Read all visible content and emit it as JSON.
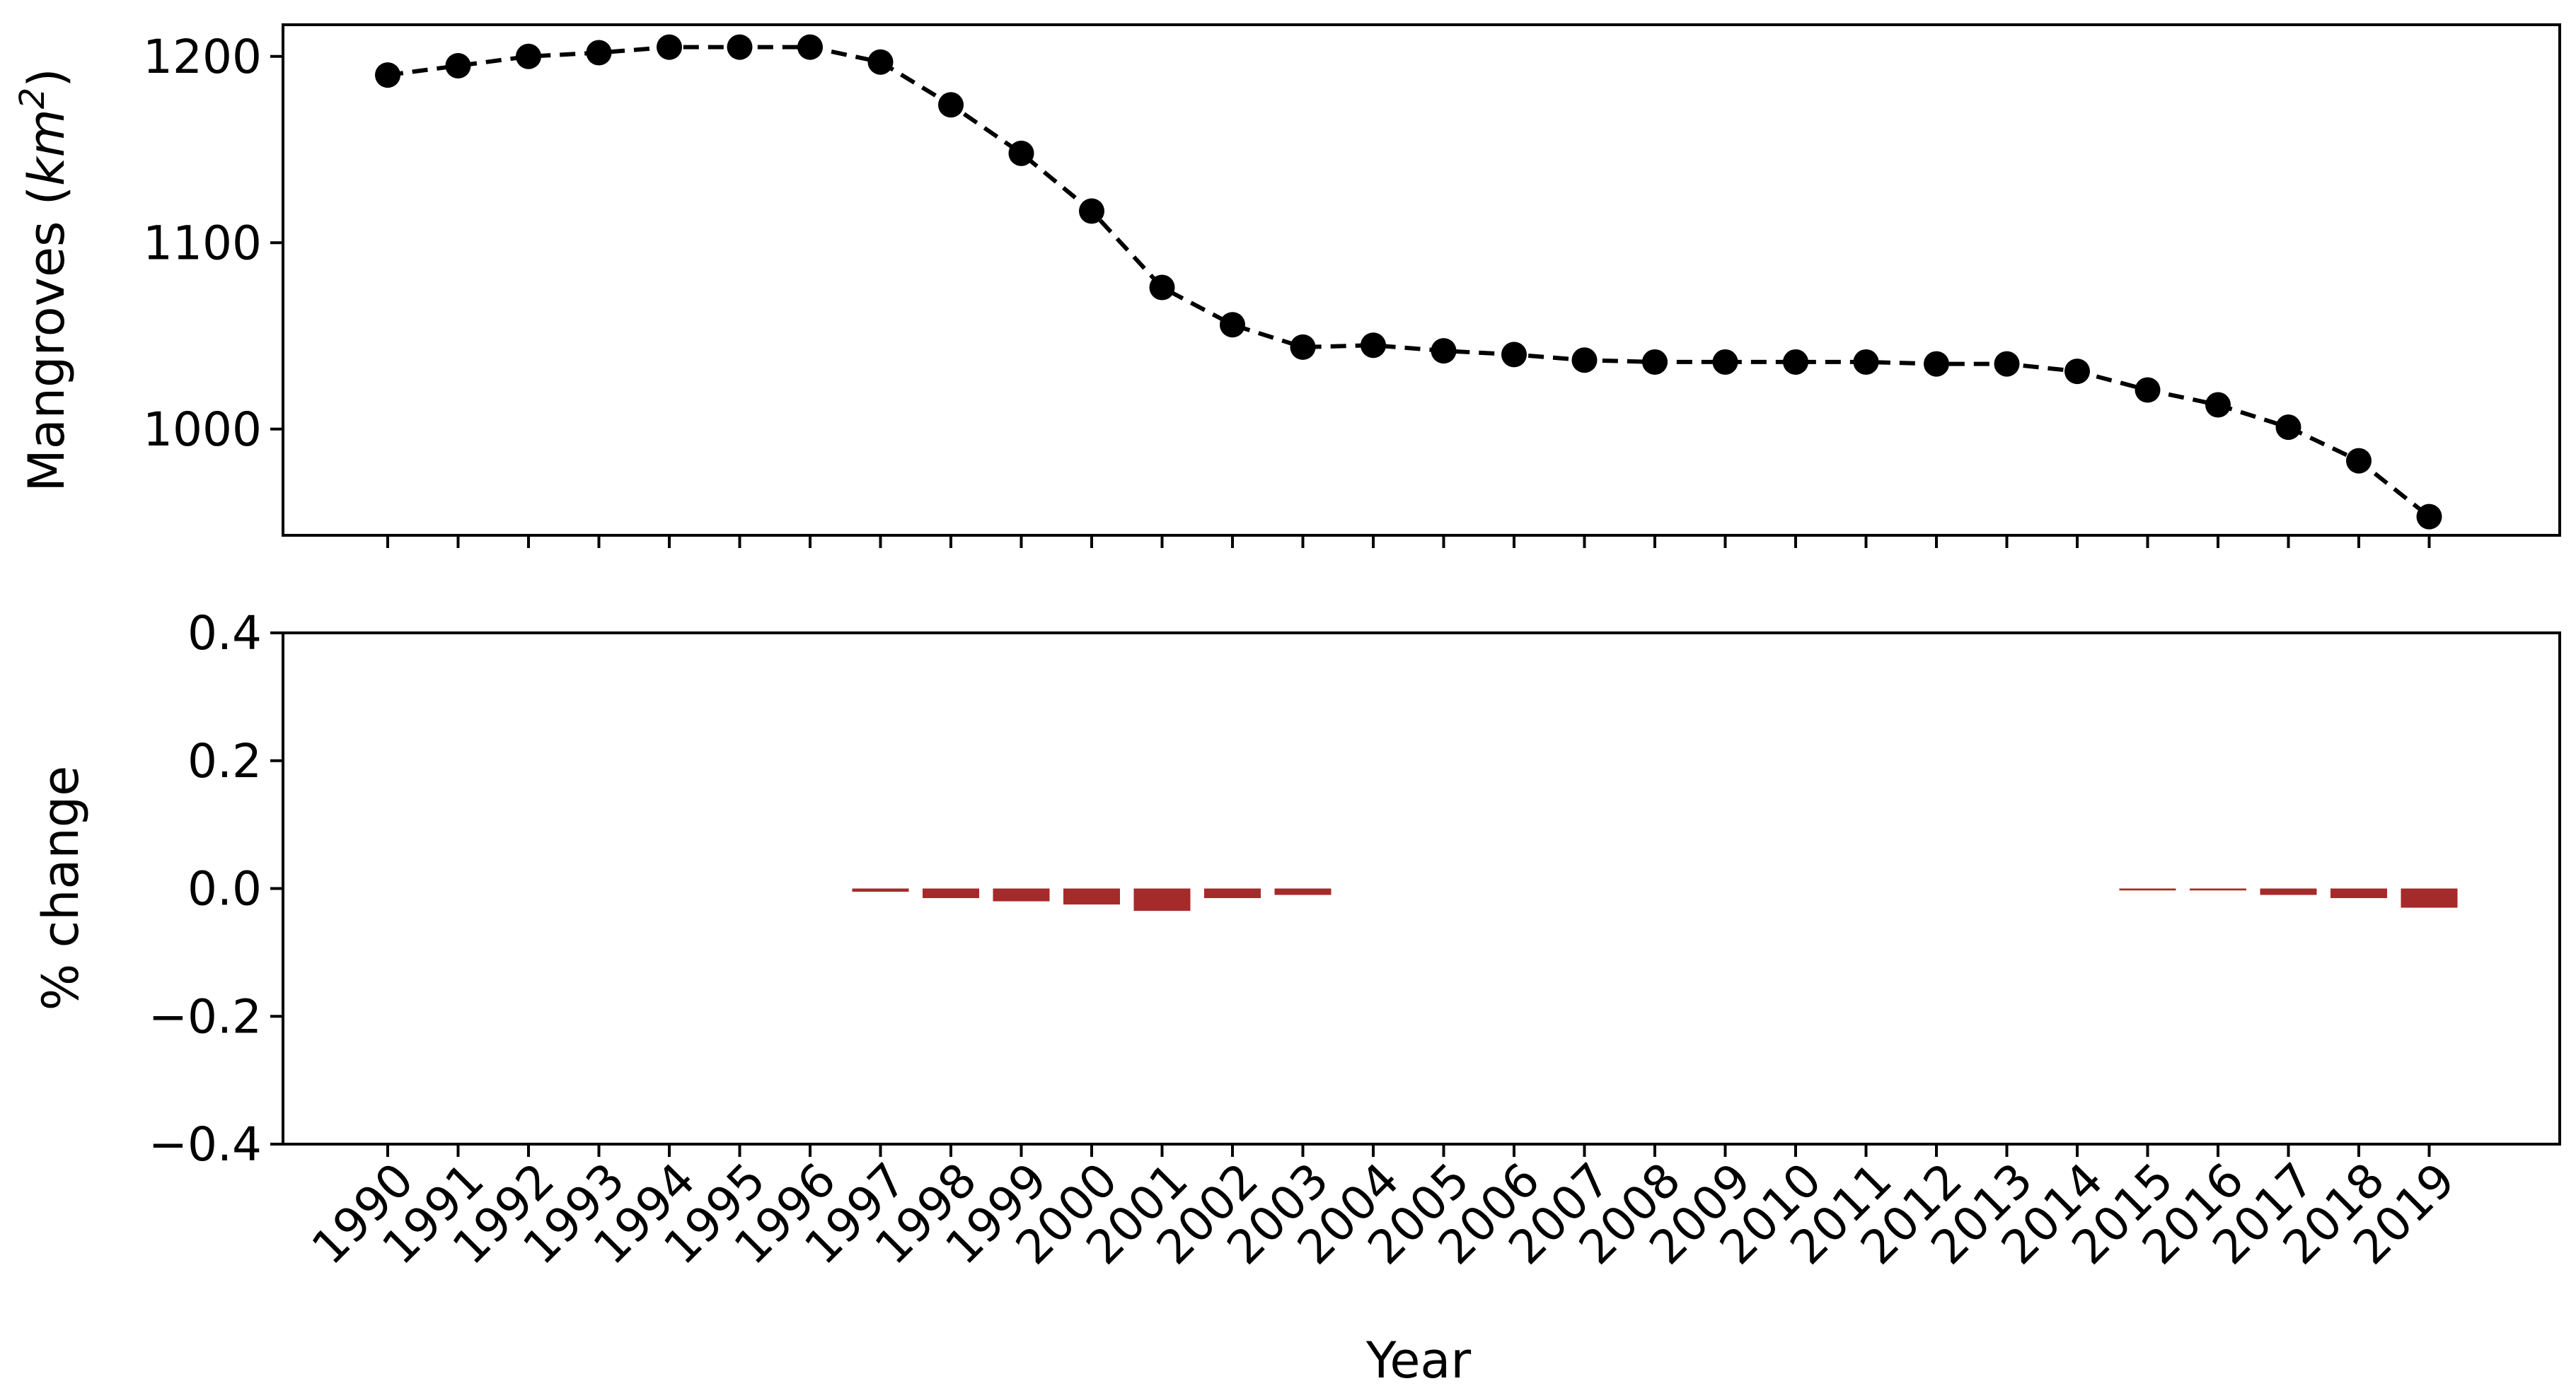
{
  "chart_data": [
    {
      "type": "line",
      "ylabel": "Mangroves (km²)",
      "ylabel_parts": {
        "main": "Mangroves (",
        "unit_base": "km",
        "unit_exp": "2",
        "close": ")"
      },
      "ylim": [
        943,
        1217
      ],
      "yticks": [
        "1000",
        "1100",
        "1200"
      ],
      "yticks_values": [
        1000,
        1100,
        1200
      ],
      "grid": false,
      "marker": "circle",
      "line_style": "dashed",
      "color": "#000000",
      "series": [
        {
          "x": [
            1990,
            1991,
            1992,
            1993,
            1994,
            1995,
            1996,
            1997,
            1998,
            1999,
            2000,
            2001,
            2002,
            2003,
            2004,
            2005,
            2006,
            2007,
            2008,
            2009,
            2010,
            2011,
            2012,
            2013,
            2014,
            2015,
            2016,
            2017,
            2018,
            2019
          ],
          "values": [
            1190,
            1195,
            1200,
            1202,
            1205,
            1205,
            1205,
            1197,
            1174,
            1148,
            1117,
            1076,
            1056,
            1044,
            1045,
            1042,
            1040,
            1037,
            1036,
            1036,
            1036,
            1036,
            1035,
            1035,
            1031,
            1021,
            1013,
            1001,
            983,
            953
          ]
        }
      ]
    },
    {
      "type": "bar",
      "ylabel": "% change",
      "xlabel": "Year",
      "ylim": [
        -0.4,
        0.4
      ],
      "yticks": [
        "0.4",
        "0.2",
        "0.0",
        "−0.2",
        "−0.4"
      ],
      "yticks_values": [
        0.4,
        0.2,
        0.0,
        -0.2,
        -0.4
      ],
      "grid": false,
      "color": "#a52a2a",
      "categories": [
        "1990",
        "1991",
        "1992",
        "1993",
        "1994",
        "1995",
        "1996",
        "1997",
        "1998",
        "1999",
        "2000",
        "2001",
        "2002",
        "2003",
        "2004",
        "2005",
        "2006",
        "2007",
        "2008",
        "2009",
        "2010",
        "2011",
        "2012",
        "2013",
        "2014",
        "2015",
        "2016",
        "2017",
        "2018",
        "2019"
      ],
      "series": [
        {
          "values": [
            0,
            0,
            0,
            0,
            0,
            0,
            0,
            -0.005,
            -0.015,
            -0.02,
            -0.025,
            -0.035,
            -0.015,
            -0.01,
            0,
            0,
            0,
            0,
            0,
            0,
            0,
            0,
            0,
            0,
            0,
            -0.003,
            -0.003,
            -0.01,
            -0.015,
            -0.03
          ]
        }
      ]
    }
  ]
}
